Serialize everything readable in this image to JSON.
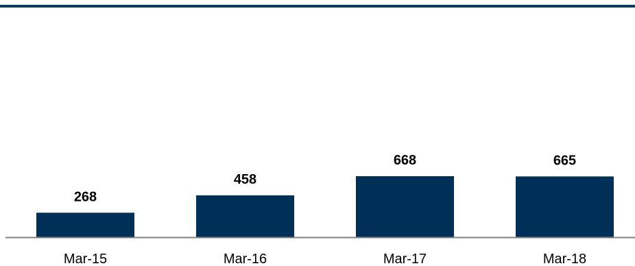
{
  "chart_data": {
    "type": "bar",
    "categories": [
      "Mar-15",
      "Mar-16",
      "Mar-17",
      "Mar-18"
    ],
    "values": [
      268,
      458,
      668,
      665
    ],
    "data_labels": [
      "268",
      "458",
      "668",
      "665"
    ],
    "title": "",
    "xlabel": "",
    "ylabel": "",
    "ylim": [
      0,
      850
    ],
    "grid": false,
    "legend": "none"
  },
  "colors": {
    "bar": "#003057",
    "top_rule": "#0b3a63",
    "axis": "#808080"
  }
}
